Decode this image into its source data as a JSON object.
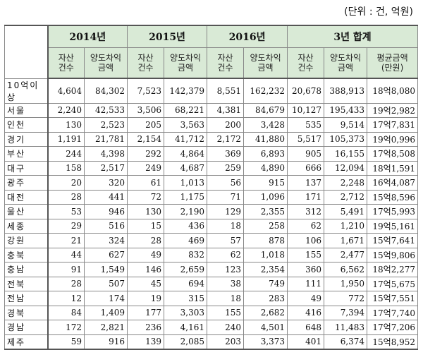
{
  "unit": "(단위 : 건, 억원)",
  "header": {
    "years": [
      "2014년",
      "2015년",
      "2016년",
      "3년 합계"
    ],
    "sub": {
      "count": "자산\n건수",
      "amount": "양도차익\n금액",
      "avg": "평균금액\n(만원)"
    }
  },
  "rows": [
    {
      "region": "10억이상",
      "c14": "4,604",
      "a14": "84,302",
      "c15": "7,523",
      "a15": "142,379",
      "c16": "8,551",
      "a16": "162,232",
      "ct": "20,678",
      "at": "388,913",
      "avg": "18억8,080"
    },
    {
      "region": "서울",
      "c14": "2,240",
      "a14": "42,533",
      "c15": "3,506",
      "a15": "68,221",
      "c16": "4,381",
      "a16": "84,679",
      "ct": "10,127",
      "at": "195,433",
      "avg": "19억2,982"
    },
    {
      "region": "인천",
      "c14": "130",
      "a14": "2,523",
      "c15": "205",
      "a15": "3,563",
      "c16": "200",
      "a16": "3,428",
      "ct": "535",
      "at": "9,514",
      "avg": "17억7,831"
    },
    {
      "region": "경기",
      "c14": "1,191",
      "a14": "21,781",
      "c15": "2,154",
      "a15": "41,712",
      "c16": "2,172",
      "a16": "41,880",
      "ct": "5,517",
      "at": "105,373",
      "avg": "19억0,996"
    },
    {
      "region": "부산",
      "c14": "244",
      "a14": "4,398",
      "c15": "292",
      "a15": "4,864",
      "c16": "369",
      "a16": "6,893",
      "ct": "905",
      "at": "16,155",
      "avg": "17억8,508"
    },
    {
      "region": "대구",
      "c14": "158",
      "a14": "2,517",
      "c15": "249",
      "a15": "4,687",
      "c16": "259",
      "a16": "4,890",
      "ct": "666",
      "at": "12,094",
      "avg": "18억1,591"
    },
    {
      "region": "광주",
      "c14": "20",
      "a14": "320",
      "c15": "61",
      "a15": "1,013",
      "c16": "56",
      "a16": "915",
      "ct": "137",
      "at": "2,248",
      "avg": "16억4,087"
    },
    {
      "region": "대전",
      "c14": "28",
      "a14": "441",
      "c15": "72",
      "a15": "1,175",
      "c16": "71",
      "a16": "1,096",
      "ct": "171",
      "at": "2,712",
      "avg": "15억8,596"
    },
    {
      "region": "울산",
      "c14": "53",
      "a14": "946",
      "c15": "130",
      "a15": "2,190",
      "c16": "129",
      "a16": "2,355",
      "ct": "312",
      "at": "5,491",
      "avg": "17억5,993"
    },
    {
      "region": "세종",
      "c14": "29",
      "a14": "516",
      "c15": "15",
      "a15": "436",
      "c16": "18",
      "a16": "258",
      "ct": "62",
      "at": "1,210",
      "avg": "19억5,161"
    },
    {
      "region": "강원",
      "c14": "21",
      "a14": "324",
      "c15": "28",
      "a15": "469",
      "c16": "57",
      "a16": "878",
      "ct": "106",
      "at": "1,671",
      "avg": "15억7,641"
    },
    {
      "region": "충북",
      "c14": "44",
      "a14": "627",
      "c15": "49",
      "a15": "832",
      "c16": "62",
      "a16": "1,018",
      "ct": "155",
      "at": "2,477",
      "avg": "15억9,806"
    },
    {
      "region": "충남",
      "c14": "91",
      "a14": "1,549",
      "c15": "146",
      "a15": "2,659",
      "c16": "123",
      "a16": "2,354",
      "ct": "360",
      "at": "6,562",
      "avg": "18억2,277"
    },
    {
      "region": "전북",
      "c14": "28",
      "a14": "507",
      "c15": "45",
      "a15": "694",
      "c16": "38",
      "a16": "749",
      "ct": "111",
      "at": "1,950",
      "avg": "17억5,675"
    },
    {
      "region": "전남",
      "c14": "12",
      "a14": "174",
      "c15": "19",
      "a15": "315",
      "c16": "18",
      "a16": "283",
      "ct": "49",
      "at": "772",
      "avg": "15억7,551"
    },
    {
      "region": "경북",
      "c14": "84",
      "a14": "1,409",
      "c15": "177",
      "a15": "3,303",
      "c16": "155",
      "a16": "2,682",
      "ct": "416",
      "at": "7,394",
      "avg": "17억7,740"
    },
    {
      "region": "경남",
      "c14": "172",
      "a14": "2,821",
      "c15": "236",
      "a15": "4,161",
      "c16": "240",
      "a16": "4,501",
      "ct": "648",
      "at": "11,483",
      "avg": "17억7,206"
    },
    {
      "region": "제주",
      "c14": "59",
      "a14": "916",
      "c15": "139",
      "a15": "2,085",
      "c16": "203",
      "a16": "3,373",
      "ct": "401",
      "at": "6,374",
      "avg": "15억8,952"
    }
  ]
}
